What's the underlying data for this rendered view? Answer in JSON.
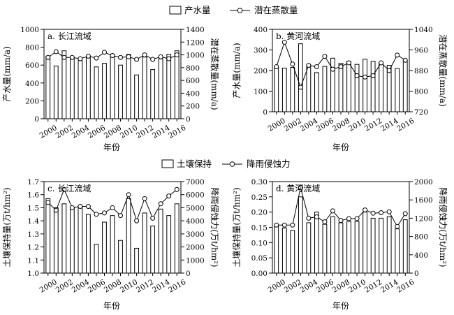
{
  "legends": {
    "top": {
      "bar": "产水量",
      "line": "潜在蒸散量"
    },
    "bottom": {
      "bar": "土壤保持",
      "line": "降雨侵蚀力"
    }
  },
  "xlabel": "年份",
  "chart_data": [
    {
      "type": "bar+line",
      "title": "a. 长江流域",
      "x": [
        2000,
        2001,
        2002,
        2003,
        2004,
        2005,
        2006,
        2007,
        2008,
        2009,
        2010,
        2011,
        2012,
        2013,
        2014,
        2015,
        2016
      ],
      "xticks": [
        "2000",
        "2002",
        "2004",
        "2006",
        "2008",
        "2010",
        "2012",
        "2014",
        "2016"
      ],
      "xlabel": "年份",
      "ylabel": "产水量(mm/a)",
      "y2label": "潜在蒸散量(mm/a)",
      "ylim": [
        0,
        1000
      ],
      "yticks": [
        0,
        200,
        400,
        600,
        800,
        1000
      ],
      "y2lim": [
        0,
        1400
      ],
      "y2ticks": [
        0,
        200,
        400,
        600,
        800,
        1000,
        1200,
        1400
      ],
      "series": [
        {
          "name": "产水量",
          "kind": "bar",
          "axis": "left",
          "values": [
            700,
            590,
            760,
            690,
            650,
            690,
            580,
            620,
            720,
            600,
            720,
            490,
            690,
            550,
            670,
            720,
            760
          ]
        },
        {
          "name": "潜在蒸散量",
          "kind": "line",
          "axis": "right",
          "values": [
            960,
            1050,
            960,
            960,
            940,
            980,
            950,
            1040,
            990,
            960,
            970,
            930,
            1000,
            930,
            970,
            940,
            1000
          ]
        }
      ]
    },
    {
      "type": "bar+line",
      "title": "b. 黄河流域",
      "x": [
        2000,
        2001,
        2002,
        2003,
        2004,
        2005,
        2006,
        2007,
        2008,
        2009,
        2010,
        2011,
        2012,
        2013,
        2014,
        2015,
        2016
      ],
      "xticks": [
        "2000",
        "2002",
        "2004",
        "2006",
        "2008",
        "2010",
        "2012",
        "2014",
        "2016"
      ],
      "xlabel": "年份",
      "ylabel": "产水量(mm/a)",
      "y2label": "潜在蒸散量(mm/a)",
      "ylim": [
        0,
        400
      ],
      "yticks": [
        0,
        100,
        200,
        300,
        400
      ],
      "y2lim": [
        720,
        1040
      ],
      "y2ticks": [
        720,
        800,
        880,
        960,
        1040
      ],
      "series": [
        {
          "name": "产水量",
          "kind": "bar",
          "axis": "left",
          "values": [
            215,
            212,
            215,
            330,
            225,
            190,
            220,
            260,
            235,
            245,
            230,
            255,
            245,
            240,
            225,
            210,
            245
          ]
        },
        {
          "name": "潜在蒸散量",
          "kind": "line",
          "axis": "right",
          "values": [
            895,
            990,
            905,
            815,
            900,
            895,
            935,
            885,
            895,
            910,
            860,
            855,
            860,
            910,
            880,
            940,
            920
          ]
        }
      ]
    },
    {
      "type": "bar+line",
      "title": "c. 长江流域",
      "x": [
        2000,
        2001,
        2002,
        2003,
        2004,
        2005,
        2006,
        2007,
        2008,
        2009,
        2010,
        2011,
        2012,
        2013,
        2014,
        2015,
        2016
      ],
      "xticks": [
        "2000",
        "2002",
        "2004",
        "2006",
        "2008",
        "2010",
        "2012",
        "2014",
        "2016"
      ],
      "xlabel": "年份",
      "ylabel": "土壤保持量(万t/hm²)",
      "y2label": "降雨侵蚀力(万t/hm²)",
      "ylim": [
        1.0,
        1.7
      ],
      "yticks": [
        1.0,
        1.1,
        1.2,
        1.3,
        1.4,
        1.5,
        1.6,
        1.7
      ],
      "y2lim": [
        0,
        7000
      ],
      "y2ticks": [
        0,
        1000,
        2000,
        3000,
        4000,
        5000,
        6000,
        7000
      ],
      "series": [
        {
          "name": "土壤保持",
          "kind": "bar",
          "axis": "left",
          "values": [
            1.57,
            1.5,
            1.53,
            1.5,
            1.51,
            1.45,
            1.22,
            1.39,
            1.44,
            1.25,
            1.57,
            1.19,
            1.46,
            1.36,
            1.49,
            1.44,
            1.53
          ]
        },
        {
          "name": "降雨侵蚀力",
          "kind": "line",
          "axis": "right",
          "values": [
            5400,
            4800,
            6400,
            5000,
            5100,
            5100,
            4500,
            4600,
            5000,
            4400,
            6000,
            4000,
            5700,
            4200,
            5300,
            5900,
            6400
          ]
        }
      ]
    },
    {
      "type": "bar+line",
      "title": "d. 黄河流域",
      "x": [
        2000,
        2001,
        2002,
        2003,
        2004,
        2005,
        2006,
        2007,
        2008,
        2009,
        2010,
        2011,
        2012,
        2013,
        2014,
        2015,
        2016
      ],
      "xticks": [
        "2000",
        "2002",
        "2004",
        "2006",
        "2008",
        "2010",
        "2012",
        "2014",
        "2016"
      ],
      "xlabel": "年份",
      "ylabel": "土壤保持量(万t/hm²)",
      "y2label": "降雨侵蚀力(万t/hm²)",
      "ylim": [
        0,
        0.3
      ],
      "yticks": [
        0,
        0.05,
        0.1,
        0.15,
        0.2,
        0.25,
        0.3
      ],
      "y2lim": [
        0,
        2000
      ],
      "y2ticks": [
        0,
        400,
        800,
        1200,
        1600,
        2000
      ],
      "series": [
        {
          "name": "土壤保持",
          "kind": "bar",
          "axis": "left",
          "values": [
            0.155,
            0.148,
            0.14,
            0.25,
            0.165,
            0.2,
            0.16,
            0.185,
            0.165,
            0.17,
            0.17,
            0.2,
            0.18,
            0.18,
            0.185,
            0.145,
            0.175
          ]
        },
        {
          "name": "降雨侵蚀力",
          "kind": "line",
          "axis": "right",
          "values": [
            1050,
            1050,
            1050,
            1870,
            1200,
            1230,
            1120,
            1360,
            1150,
            1190,
            1190,
            1380,
            1310,
            1320,
            1340,
            1020,
            1300
          ]
        }
      ]
    }
  ]
}
